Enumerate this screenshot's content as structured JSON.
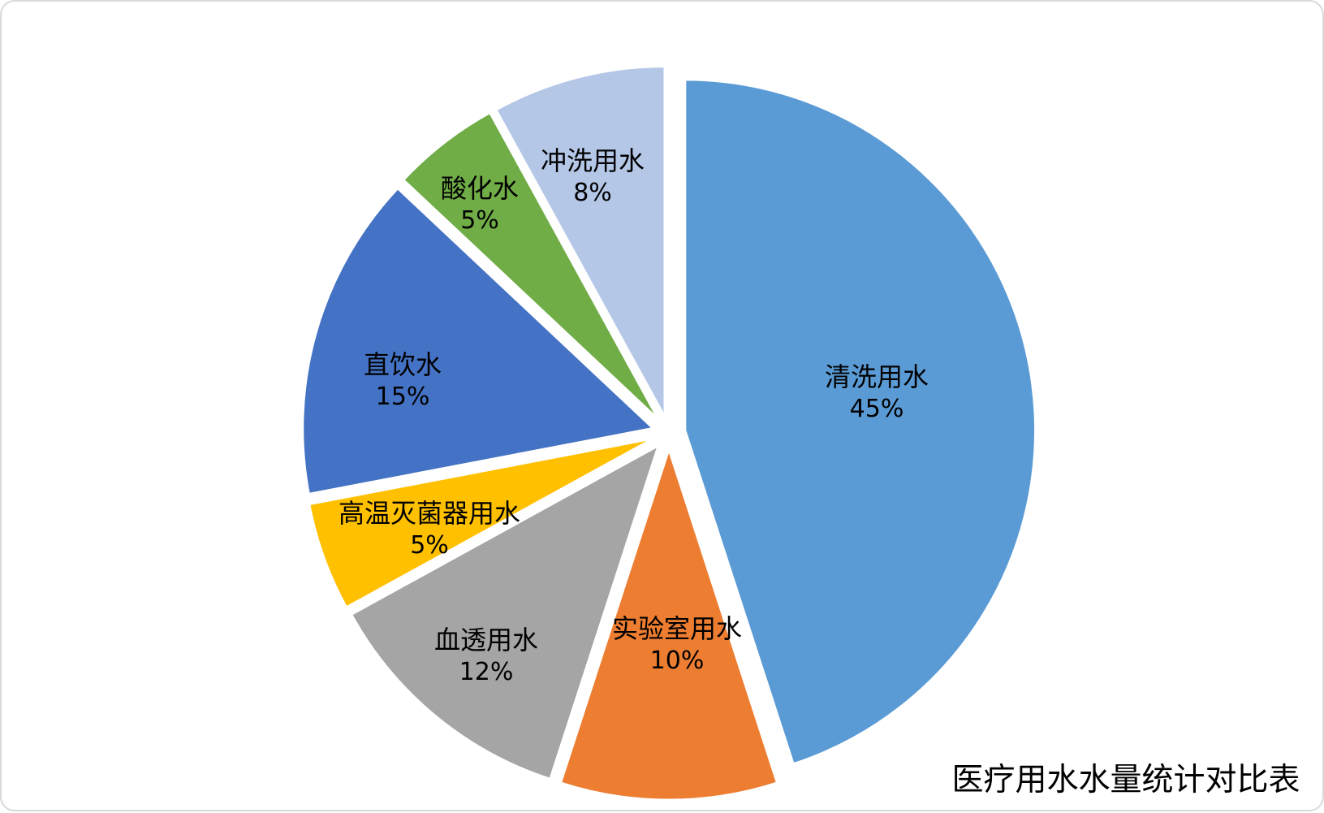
{
  "frame": {
    "background_color": "#FFFFFF",
    "border_color": "#D9D9D9"
  },
  "chart_data": {
    "type": "pie",
    "title": "医疗用水水量统计对比表",
    "legend_position": "none",
    "start_angle_deg": 0,
    "direction": "clockwise",
    "label_style": "category name and percent inside slices",
    "exploded": true,
    "slices": [
      {
        "label": "清洗用水",
        "value": 45,
        "display": "45%",
        "color": "#5B9BD5"
      },
      {
        "label": "实验室用水",
        "value": 10,
        "display": "10%",
        "color": "#ED7D31"
      },
      {
        "label": "血透用水",
        "value": 12,
        "display": "12%",
        "color": "#A5A5A5"
      },
      {
        "label": "高温灭菌器用水",
        "value": 5,
        "display": "5%",
        "color": "#FFC000"
      },
      {
        "label": "直饮水",
        "value": 15,
        "display": "15%",
        "color": "#4472C4"
      },
      {
        "label": "酸化水",
        "value": 5,
        "display": "5%",
        "color": "#70AD47"
      },
      {
        "label": "冲洗用水",
        "value": 8,
        "display": "8%",
        "color": "#B4C7E7"
      }
    ]
  }
}
